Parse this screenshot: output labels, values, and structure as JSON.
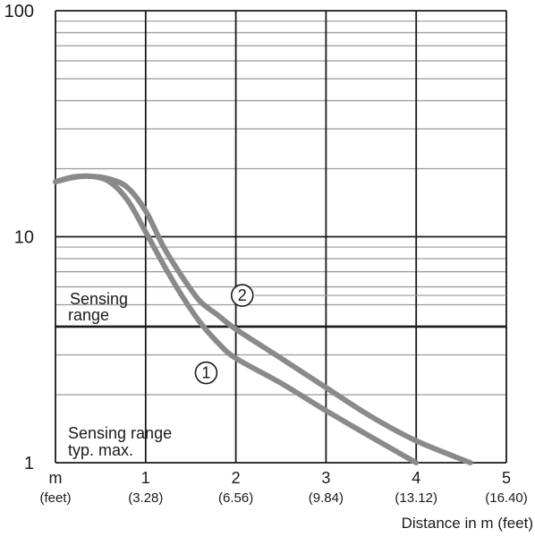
{
  "chart_data": {
    "type": "line",
    "xlabel": "Distance in m (feet)",
    "ylabel": "",
    "xlim": [
      0,
      5
    ],
    "ylim": [
      1,
      100
    ],
    "y_scale": "log",
    "grid": true,
    "x_ticks": [
      {
        "value": 0,
        "label": "m",
        "sublabel": "(feet)"
      },
      {
        "value": 1,
        "label": "1",
        "sublabel": "(3.28)"
      },
      {
        "value": 2,
        "label": "2",
        "sublabel": "(6.56)"
      },
      {
        "value": 3,
        "label": "3",
        "sublabel": "(9.84)"
      },
      {
        "value": 4,
        "label": "4",
        "sublabel": "(13.12)"
      },
      {
        "value": 5,
        "label": "5",
        "sublabel": "(16.40)"
      }
    ],
    "y_ticks": [
      {
        "value": 1,
        "label": "1"
      },
      {
        "value": 10,
        "label": "10"
      },
      {
        "value": 100,
        "label": "100"
      }
    ],
    "annotations": {
      "sensing_range": "Sensing range",
      "sensing_range_typ_max": "Sensing range typ. max.",
      "sensing_range_line": 4
    },
    "series": [
      {
        "name": "①",
        "x": [
          0,
          0.2,
          0.4,
          0.6,
          0.8,
          1.0,
          1.2,
          1.4,
          1.6,
          1.8,
          2.0,
          2.5,
          3.0,
          3.5,
          4.0
        ],
        "y": [
          17.5,
          18.3,
          18.5,
          17.5,
          14.5,
          10.5,
          7.5,
          5.5,
          4.2,
          3.4,
          2.9,
          2.25,
          1.7,
          1.3,
          1.0
        ],
        "marker_at": [
          1.8,
          2.5
        ]
      },
      {
        "name": "②",
        "x": [
          0,
          0.2,
          0.4,
          0.6,
          0.8,
          1.0,
          1.2,
          1.4,
          1.6,
          1.8,
          2.0,
          2.5,
          3.0,
          3.5,
          4.0,
          4.6
        ],
        "y": [
          17.5,
          18.4,
          18.5,
          18.0,
          16.5,
          13.0,
          9.0,
          6.7,
          5.2,
          4.5,
          3.9,
          2.9,
          2.15,
          1.6,
          1.25,
          1.0
        ],
        "marker_at": [
          2.2,
          5.5
        ]
      }
    ],
    "colors": {
      "curve": "#8a8a8a",
      "grid": "#1a1a1a",
      "minor_grid": "#9a9a9a"
    }
  }
}
